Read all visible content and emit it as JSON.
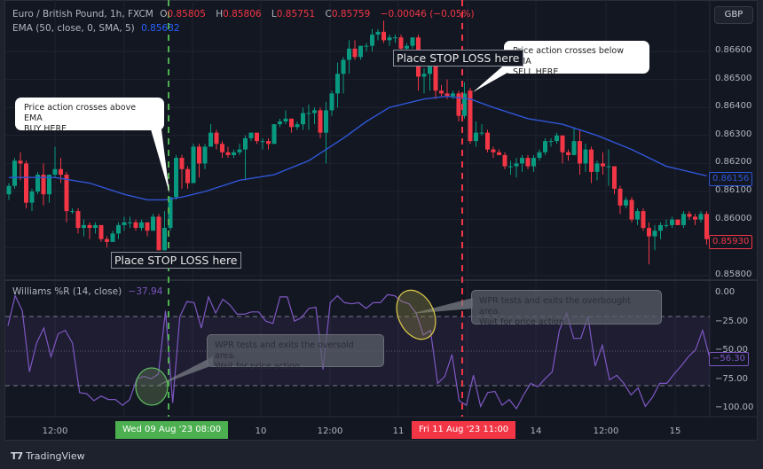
{
  "header": {
    "symbol": "Euro / British Pound, 1h, FXCM",
    "o_label": "O",
    "o": "0.85805",
    "h_label": "H",
    "h": "0.85806",
    "l_label": "L",
    "l": "0.85751",
    "c_label": "C",
    "c": "0.85759",
    "change": "−0.00046 (−0.05%)",
    "ema_label": "EMA (50, close, 0, SMA, 5)",
    "ema_value": "0.85632"
  },
  "currency_button": "GBP",
  "price_axis": [
    "0.86600",
    "0.86500",
    "0.86400",
    "0.86300",
    "0.86200",
    "0.86100",
    "0.86000",
    "0.85900",
    "0.85800"
  ],
  "last_ema_tag": "0.86156",
  "last_price_tag": "0.85930",
  "wpr": {
    "label": "Williams %R (14, close)",
    "value": "−37.94",
    "axis": [
      "0.00",
      "−25.00",
      "−50.00",
      "−75.00",
      "−100.00"
    ],
    "last_tag": "−56.30"
  },
  "time_axis": {
    "labels": [
      "12:00",
      "10",
      "12:00",
      "11",
      "14",
      "12:00",
      "15"
    ],
    "buy_marker": "Wed 09 Aug '23   08:00",
    "sell_marker": "Fri 11 Aug '23   11:00"
  },
  "annotations": {
    "buy_callout_line1": "Price action crosses above EMA",
    "buy_callout_line2": "BUY HERE",
    "sell_callout_line1": "Price action crosses below EMA",
    "sell_callout_line2": "SELL HERE",
    "stop_loss_1": "Place STOP LOSS here",
    "stop_loss_2": "Place STOP LOSS here",
    "oversold_line1": "WPR tests and exits the oversold area.",
    "oversold_line2": "Wait for price action.",
    "overbought_line1": "WPR tests and exits the overbought area.",
    "overbought_line2": "Wait for price action"
  },
  "brand": "TradingView",
  "colors": {
    "up": "#089981",
    "down": "#f23645",
    "ema": "#2f56d6",
    "wpr": "#7e57c2",
    "buy_line": "#4caf50",
    "sell_line": "#f23645"
  },
  "chart_data": [
    {
      "type": "candlestick",
      "title": "Euro / British Pound, 1h, FXCM",
      "ylim": [
        0.8578,
        0.8674
      ],
      "grid": true,
      "ohlc": [
        [
          0.8609,
          0.8613,
          0.8607,
          0.8612
        ],
        [
          0.8612,
          0.8622,
          0.8611,
          0.8621
        ],
        [
          0.8621,
          0.8624,
          0.8614,
          0.862
        ],
        [
          0.862,
          0.8621,
          0.8604,
          0.8606
        ],
        [
          0.8606,
          0.8611,
          0.8603,
          0.861
        ],
        [
          0.861,
          0.8617,
          0.8609,
          0.8616
        ],
        [
          0.8616,
          0.862,
          0.8605,
          0.8609
        ],
        [
          0.8609,
          0.8616,
          0.8606,
          0.8616
        ],
        [
          0.8616,
          0.8626,
          0.8615,
          0.8618
        ],
        [
          0.8618,
          0.8622,
          0.8613,
          0.8616
        ],
        [
          0.8616,
          0.8617,
          0.8599,
          0.8603
        ],
        [
          0.8603,
          0.8604,
          0.8602,
          0.8603
        ],
        [
          0.8603,
          0.8604,
          0.8595,
          0.8597
        ],
        [
          0.8597,
          0.86,
          0.8594,
          0.8598
        ],
        [
          0.8598,
          0.8599,
          0.8593,
          0.8597
        ],
        [
          0.8597,
          0.8599,
          0.8595,
          0.8598
        ],
        [
          0.8598,
          0.8598,
          0.8592,
          0.8593
        ],
        [
          0.8593,
          0.8594,
          0.859,
          0.8592
        ],
        [
          0.8592,
          0.8596,
          0.8592,
          0.8595
        ],
        [
          0.8595,
          0.8599,
          0.8593,
          0.8598
        ],
        [
          0.8598,
          0.8601,
          0.8596,
          0.8599
        ],
        [
          0.8599,
          0.8601,
          0.8597,
          0.8599
        ],
        [
          0.8599,
          0.86,
          0.8596,
          0.8597
        ],
        [
          0.8597,
          0.86,
          0.8596,
          0.8599
        ],
        [
          0.8599,
          0.8599,
          0.8594,
          0.8596
        ],
        [
          0.8596,
          0.8602,
          0.8596,
          0.8601
        ],
        [
          0.8601,
          0.8602,
          0.8589,
          0.8589
        ],
        [
          0.8589,
          0.8603,
          0.8589,
          0.8597
        ],
        [
          0.8597,
          0.8608,
          0.8596,
          0.8608
        ],
        [
          0.8608,
          0.8623,
          0.8607,
          0.8622
        ],
        [
          0.8622,
          0.8623,
          0.8611,
          0.8618
        ],
        [
          0.8618,
          0.8619,
          0.8611,
          0.8613
        ],
        [
          0.8613,
          0.8627,
          0.8613,
          0.8626
        ],
        [
          0.8626,
          0.8627,
          0.8615,
          0.862
        ],
        [
          0.862,
          0.8627,
          0.8618,
          0.8626
        ],
        [
          0.8626,
          0.8634,
          0.8626,
          0.8631
        ],
        [
          0.8631,
          0.8632,
          0.8625,
          0.8627
        ],
        [
          0.8627,
          0.8628,
          0.8622,
          0.8624
        ],
        [
          0.8624,
          0.8626,
          0.8622,
          0.8623
        ],
        [
          0.8623,
          0.8625,
          0.8622,
          0.8624
        ],
        [
          0.8624,
          0.8627,
          0.8623,
          0.8625
        ],
        [
          0.8625,
          0.863,
          0.8614,
          0.8629
        ],
        [
          0.8629,
          0.8631,
          0.8628,
          0.8631
        ],
        [
          0.8631,
          0.8631,
          0.8627,
          0.8628
        ],
        [
          0.8628,
          0.8629,
          0.8625,
          0.8628
        ],
        [
          0.8628,
          0.8629,
          0.8625,
          0.8627
        ],
        [
          0.8627,
          0.8634,
          0.8627,
          0.8634
        ],
        [
          0.8634,
          0.8636,
          0.8633,
          0.8635
        ],
        [
          0.8635,
          0.8639,
          0.8634,
          0.8636
        ],
        [
          0.8636,
          0.8636,
          0.8631,
          0.8633
        ],
        [
          0.8633,
          0.8635,
          0.8632,
          0.8634
        ],
        [
          0.8634,
          0.864,
          0.8632,
          0.8638
        ],
        [
          0.8638,
          0.8641,
          0.8632,
          0.8638
        ],
        [
          0.8638,
          0.864,
          0.8634,
          0.8639
        ],
        [
          0.8639,
          0.864,
          0.8629,
          0.8631
        ],
        [
          0.8631,
          0.8642,
          0.862,
          0.8639
        ],
        [
          0.8639,
          0.8646,
          0.8637,
          0.8645
        ],
        [
          0.8645,
          0.8656,
          0.864,
          0.8652
        ],
        [
          0.8652,
          0.8658,
          0.8645,
          0.8657
        ],
        [
          0.8657,
          0.8664,
          0.8652,
          0.8661
        ],
        [
          0.8661,
          0.8664,
          0.8657,
          0.8658
        ],
        [
          0.8658,
          0.8662,
          0.8657,
          0.8662
        ],
        [
          0.8662,
          0.8663,
          0.866,
          0.8662
        ],
        [
          0.8662,
          0.8668,
          0.866,
          0.8666
        ],
        [
          0.8666,
          0.8668,
          0.8664,
          0.8667
        ],
        [
          0.8667,
          0.8671,
          0.8663,
          0.8664
        ],
        [
          0.8664,
          0.8666,
          0.8662,
          0.8665
        ],
        [
          0.8665,
          0.8666,
          0.8663,
          0.8665
        ],
        [
          0.8665,
          0.8666,
          0.866,
          0.8661
        ],
        [
          0.8661,
          0.8663,
          0.866,
          0.8662
        ],
        [
          0.8662,
          0.8665,
          0.8661,
          0.8665
        ],
        [
          0.8665,
          0.8666,
          0.8646,
          0.8651
        ],
        [
          0.8651,
          0.8654,
          0.8645,
          0.8652
        ],
        [
          0.8652,
          0.8658,
          0.8646,
          0.8657
        ],
        [
          0.8657,
          0.8658,
          0.8643,
          0.8646
        ],
        [
          0.8646,
          0.8648,
          0.8644,
          0.8645
        ],
        [
          0.8645,
          0.865,
          0.8643,
          0.8644
        ],
        [
          0.8644,
          0.8646,
          0.8643,
          0.8645
        ],
        [
          0.8645,
          0.8646,
          0.8635,
          0.8637
        ],
        [
          0.8637,
          0.8649,
          0.8636,
          0.8645
        ],
        [
          0.8646,
          0.8647,
          0.8627,
          0.8628
        ],
        [
          0.8628,
          0.8635,
          0.8626,
          0.8631
        ],
        [
          0.8631,
          0.8634,
          0.863,
          0.8631
        ],
        [
          0.8631,
          0.8632,
          0.8624,
          0.8625
        ],
        [
          0.8625,
          0.8626,
          0.8622,
          0.8624
        ],
        [
          0.8624,
          0.8625,
          0.8623,
          0.8623
        ],
        [
          0.8623,
          0.8624,
          0.8618,
          0.8619
        ],
        [
          0.8619,
          0.8621,
          0.8616,
          0.8619
        ],
        [
          0.8619,
          0.8622,
          0.8615,
          0.862
        ],
        [
          0.862,
          0.8623,
          0.8617,
          0.8622
        ],
        [
          0.8622,
          0.8623,
          0.8618,
          0.8619
        ],
        [
          0.8619,
          0.8623,
          0.8617,
          0.8622
        ],
        [
          0.8622,
          0.8625,
          0.8621,
          0.8624
        ],
        [
          0.8624,
          0.8629,
          0.8623,
          0.8628
        ],
        [
          0.8628,
          0.8629,
          0.8626,
          0.8628
        ],
        [
          0.8628,
          0.8631,
          0.8627,
          0.863
        ],
        [
          0.863,
          0.863,
          0.862,
          0.8624
        ],
        [
          0.8624,
          0.8625,
          0.8621,
          0.8623
        ],
        [
          0.8623,
          0.8633,
          0.8623,
          0.8628
        ],
        [
          0.8628,
          0.8632,
          0.8616,
          0.862
        ],
        [
          0.862,
          0.8627,
          0.8617,
          0.8625
        ],
        [
          0.8625,
          0.8626,
          0.8613,
          0.8617
        ],
        [
          0.8617,
          0.8621,
          0.8614,
          0.862
        ],
        [
          0.862,
          0.8624,
          0.8616,
          0.8619
        ],
        [
          0.8619,
          0.8625,
          0.8612,
          0.8619
        ],
        [
          0.8619,
          0.8619,
          0.8609,
          0.8611
        ],
        [
          0.8611,
          0.8612,
          0.8602,
          0.8605
        ],
        [
          0.8605,
          0.8608,
          0.8604,
          0.8607
        ],
        [
          0.8607,
          0.8608,
          0.8599,
          0.86
        ],
        [
          0.86,
          0.8604,
          0.8598,
          0.8603
        ],
        [
          0.8603,
          0.8604,
          0.8596,
          0.8597
        ],
        [
          0.8597,
          0.8599,
          0.8584,
          0.8594
        ],
        [
          0.8594,
          0.8598,
          0.8589,
          0.8596
        ],
        [
          0.8596,
          0.8599,
          0.8593,
          0.8598
        ],
        [
          0.8598,
          0.86,
          0.8597,
          0.8598
        ],
        [
          0.8598,
          0.8601,
          0.8597,
          0.86
        ],
        [
          0.86,
          0.86,
          0.8598,
          0.8598
        ],
        [
          0.8598,
          0.8603,
          0.8597,
          0.8602
        ],
        [
          0.8602,
          0.8603,
          0.86,
          0.8601
        ],
        [
          0.8601,
          0.8602,
          0.8598,
          0.86
        ],
        [
          0.86,
          0.8603,
          0.8599,
          0.8602
        ],
        [
          0.8602,
          0.8603,
          0.8591,
          0.8593
        ]
      ],
      "ema_points": [
        [
          0,
          0.8615
        ],
        [
          8,
          0.8615
        ],
        [
          14,
          0.8613
        ],
        [
          20,
          0.8609
        ],
        [
          24,
          0.8607
        ],
        [
          27,
          0.8607
        ],
        [
          30,
          0.8608
        ],
        [
          34,
          0.861
        ],
        [
          40,
          0.8614
        ],
        [
          46,
          0.8616
        ],
        [
          52,
          0.8621
        ],
        [
          58,
          0.8629
        ],
        [
          62,
          0.8635
        ],
        [
          66,
          0.864
        ],
        [
          72,
          0.8643
        ],
        [
          76,
          0.8644
        ],
        [
          80,
          0.8643
        ],
        [
          84,
          0.864
        ],
        [
          90,
          0.8636
        ],
        [
          96,
          0.8634
        ],
        [
          102,
          0.863
        ],
        [
          108,
          0.8625
        ],
        [
          114,
          0.8619
        ],
        [
          121,
          0.86156
        ]
      ],
      "buy_candle_index": 28,
      "sell_candle_index": 79
    },
    {
      "type": "line",
      "title": "Williams %R (14, close)",
      "ylim": [
        -100,
        0
      ],
      "bands": [
        -20,
        -50,
        -80
      ],
      "values": [
        -28,
        -2,
        -15,
        -68,
        -43,
        -30,
        -55,
        -35,
        -32,
        -43,
        -86,
        -87,
        -93,
        -89,
        -92,
        -92,
        -97,
        -92,
        -74,
        -72,
        -74,
        -70,
        -15,
        -95,
        -20,
        -7,
        -8,
        -30,
        -3,
        -17,
        -5,
        -10,
        -18,
        -18,
        -16,
        -16,
        -24,
        -26,
        -3,
        -3,
        -24,
        -21,
        -13,
        -12,
        -66,
        -8,
        -2,
        -8,
        -9,
        -8,
        -13,
        -8,
        -8,
        -1,
        -2,
        -7,
        -9,
        -17,
        -36,
        -32,
        -78,
        -72,
        -53,
        -93,
        -97,
        -71,
        -98,
        -86,
        -85,
        -97,
        -92,
        -100,
        -88,
        -78,
        -81,
        -74,
        -68,
        -32,
        -17,
        -39,
        -39,
        -20,
        -63,
        -45,
        -75,
        -71,
        -78,
        -88,
        -82,
        -98,
        -90,
        -78,
        -78,
        -70,
        -63,
        -55,
        -49,
        -32,
        -56.3
      ]
    }
  ]
}
